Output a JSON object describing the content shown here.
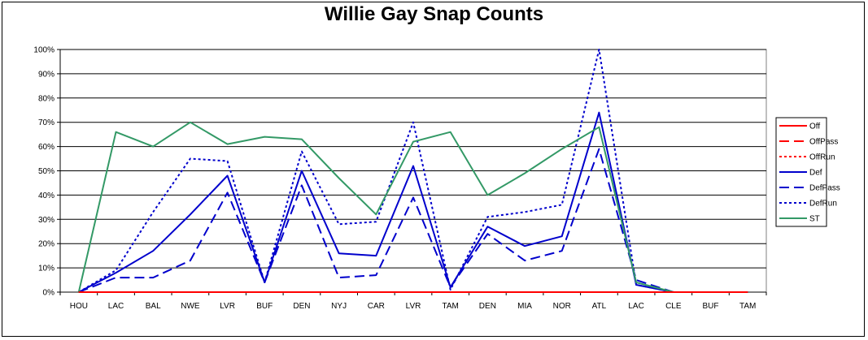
{
  "chart_data": {
    "type": "line",
    "title": "Willie Gay Snap Counts",
    "xlabel": "",
    "ylabel": "",
    "ylim": [
      0,
      1
    ],
    "y_ticks": [
      "0%",
      "10%",
      "20%",
      "30%",
      "40%",
      "50%",
      "60%",
      "70%",
      "80%",
      "90%",
      "100%"
    ],
    "grid": true,
    "legend_position": "right",
    "categories": [
      "HOU",
      "LAC",
      "BAL",
      "NWE",
      "LVR",
      "BUF",
      "DEN",
      "NYJ",
      "CAR",
      "LVR",
      "TAM",
      "DEN",
      "MIA",
      "NOR",
      "ATL",
      "LAC",
      "CLE",
      "BUF",
      "TAM"
    ],
    "series": [
      {
        "name": "Off",
        "color": "#FF0000",
        "dash": "solid",
        "values": [
          0,
          0,
          0,
          0,
          0,
          0,
          0,
          0,
          0,
          0,
          0,
          0,
          0,
          0,
          0,
          0,
          0,
          0,
          0
        ]
      },
      {
        "name": "OffPass",
        "color": "#FF0000",
        "dash": "dashed",
        "values": [
          0,
          0,
          0,
          0,
          0,
          0,
          0,
          0,
          0,
          0,
          0,
          0,
          0,
          0,
          0,
          0,
          0,
          0,
          0
        ]
      },
      {
        "name": "OffRun",
        "color": "#FF0000",
        "dash": "dotted",
        "values": [
          0,
          0,
          0,
          0,
          0,
          0,
          0,
          0,
          0,
          0,
          0,
          0,
          0,
          0,
          0,
          0,
          0,
          0,
          0
        ]
      },
      {
        "name": "Def",
        "color": "#0000CC",
        "dash": "solid",
        "values": [
          0,
          0.08,
          0.17,
          0.32,
          0.48,
          0.04,
          0.5,
          0.16,
          0.15,
          0.52,
          0.02,
          0.27,
          0.19,
          0.23,
          0.74,
          0.03,
          0,
          0,
          0
        ]
      },
      {
        "name": "DefPass",
        "color": "#0000CC",
        "dash": "dashed",
        "values": [
          0,
          0.06,
          0.06,
          0.13,
          0.41,
          0.04,
          0.44,
          0.06,
          0.07,
          0.39,
          0.02,
          0.24,
          0.13,
          0.17,
          0.59,
          0.05,
          0,
          0,
          0
        ]
      },
      {
        "name": "DefRun",
        "color": "#0000CC",
        "dash": "dotted",
        "values": [
          0,
          0.09,
          0.33,
          0.55,
          0.54,
          0.04,
          0.58,
          0.28,
          0.29,
          0.7,
          0.01,
          0.31,
          0.33,
          0.36,
          1.0,
          0.03,
          0,
          0,
          0
        ]
      },
      {
        "name": "ST",
        "color": "#339966",
        "dash": "solid",
        "values": [
          0,
          0.66,
          0.6,
          0.7,
          0.61,
          0.64,
          0.63,
          0.47,
          0.32,
          0.62,
          0.66,
          0.4,
          0.49,
          0.59,
          0.68,
          0.04,
          0,
          0,
          0
        ]
      }
    ]
  }
}
